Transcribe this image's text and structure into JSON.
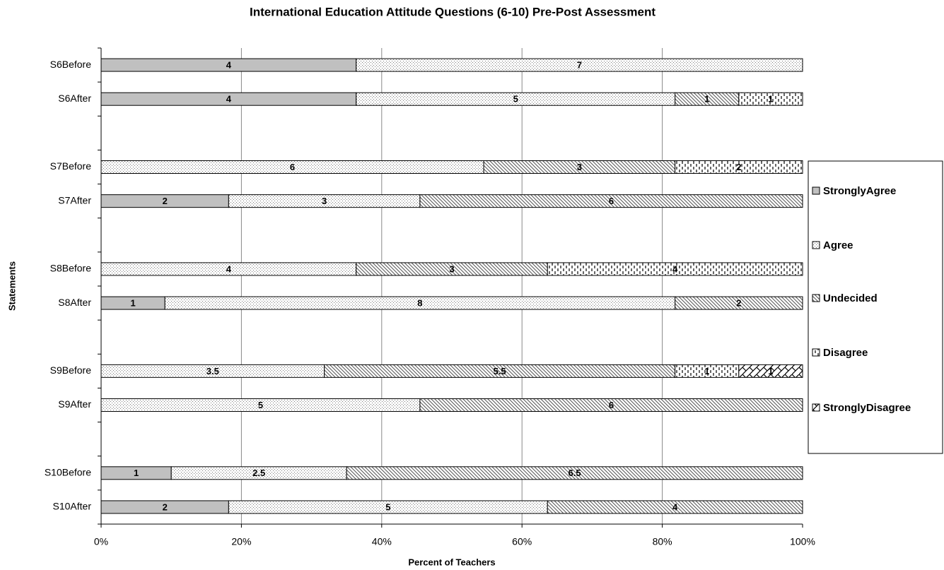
{
  "chart_data": {
    "type": "bar",
    "orientation": "horizontal",
    "stacking": "percent",
    "title": "International Education Attitude Questions (6-10) Pre-Post Assessment",
    "xlabel": "Percent of Teachers",
    "ylabel": "Statements",
    "categories": [
      "S6Before",
      "S6After",
      null,
      "S7Before",
      "S7After",
      null,
      "S8Before",
      "S8After",
      null,
      "S9Before",
      "S9After",
      null,
      "S10Before",
      "S10After"
    ],
    "series": [
      {
        "name": "StronglyAgree",
        "color": "#c0c0c0",
        "pattern": "solid",
        "values": [
          4,
          4,
          null,
          null,
          2,
          null,
          null,
          1,
          null,
          null,
          null,
          null,
          1,
          2
        ]
      },
      {
        "name": "Agree",
        "color": "#ffffff",
        "pattern": "dots",
        "values": [
          7,
          5,
          null,
          6,
          3,
          null,
          4,
          8,
          null,
          3.5,
          5,
          null,
          2.5,
          5
        ]
      },
      {
        "name": "Undecided",
        "color": "#ffffff",
        "pattern": "diagonal",
        "values": [
          null,
          1,
          null,
          3,
          6,
          null,
          3,
          2,
          null,
          5.5,
          6,
          null,
          6.5,
          4
        ]
      },
      {
        "name": "Disagree",
        "color": "#ffffff",
        "pattern": "vertical-dash",
        "values": [
          null,
          1,
          null,
          2,
          null,
          null,
          4,
          null,
          null,
          1,
          null,
          null,
          null,
          null
        ]
      },
      {
        "name": "StronglyDisagree",
        "color": "#ffffff",
        "pattern": "zigzag",
        "values": [
          null,
          null,
          null,
          null,
          null,
          null,
          null,
          null,
          null,
          1,
          null,
          null,
          null,
          null
        ]
      }
    ],
    "xlim": [
      0,
      100
    ],
    "xticks": [
      {
        "value": 0,
        "label": "0%"
      },
      {
        "value": 20,
        "label": "20%"
      },
      {
        "value": 40,
        "label": "40%"
      },
      {
        "value": 60,
        "label": "60%"
      },
      {
        "value": 80,
        "label": "80%"
      },
      {
        "value": 100,
        "label": "100%"
      }
    ],
    "grid": true,
    "legend": "right"
  }
}
